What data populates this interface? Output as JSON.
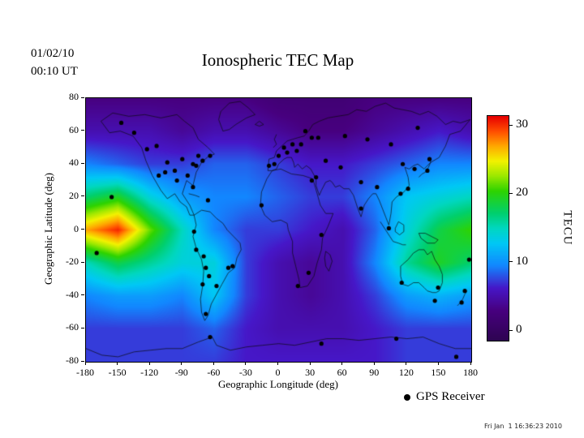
{
  "header": {
    "date": "01/02/10",
    "time": "00:10 UT",
    "title": "Ionospheric TEC Map"
  },
  "axes": {
    "xlabel": "Geographic Longitude (deg)",
    "ylabel": "Geographic Latitude (deg)",
    "x_ticks": [
      -180,
      -150,
      -120,
      -90,
      -60,
      -30,
      0,
      30,
      60,
      90,
      120,
      150,
      180
    ],
    "y_ticks": [
      80,
      60,
      40,
      20,
      0,
      -20,
      -40,
      -60,
      -80
    ]
  },
  "colorbar": {
    "unit": "TECU",
    "ticks": [
      30,
      20,
      10,
      0
    ],
    "min": 0,
    "max": 30
  },
  "legend": {
    "label": "GPS Receiver"
  },
  "footer": {
    "timestamp": "Fri Jan  1 16:36:23 2010"
  },
  "chart_data": {
    "type": "heatmap",
    "title": "Ionospheric TEC Map",
    "xlabel": "Geographic Longitude (deg)",
    "ylabel": "Geographic Latitude (deg)",
    "units": "TECU",
    "zlim": [
      0,
      30
    ],
    "xlim": [
      -180,
      180
    ],
    "ylim": [
      -80,
      80
    ],
    "x": [
      -180,
      -150,
      -120,
      -90,
      -60,
      -30,
      0,
      30,
      60,
      90,
      120,
      150,
      180
    ],
    "y": [
      80,
      60,
      40,
      20,
      0,
      -20,
      -40,
      -60,
      -80
    ],
    "values": [
      [
        4,
        4,
        4,
        4,
        4,
        4,
        3,
        3,
        3,
        4,
        4,
        4,
        4
      ],
      [
        6,
        6,
        6,
        5,
        6,
        6,
        5,
        4,
        4,
        5,
        6,
        7,
        6
      ],
      [
        10,
        9,
        8,
        8,
        9,
        9,
        8,
        7,
        7,
        8,
        9,
        10,
        10
      ],
      [
        17,
        19,
        14,
        11,
        10,
        10,
        9,
        8,
        8,
        10,
        13,
        14,
        15
      ],
      [
        26,
        29,
        21,
        15,
        10,
        8,
        8,
        7,
        6,
        9,
        14,
        18,
        20
      ],
      [
        15,
        18,
        16,
        14,
        14,
        8,
        6,
        5,
        6,
        10,
        16,
        19,
        17
      ],
      [
        10,
        11,
        11,
        10,
        13,
        8,
        6,
        5,
        6,
        8,
        11,
        12,
        11
      ],
      [
        8,
        8,
        8,
        8,
        9,
        7,
        6,
        6,
        6,
        7,
        8,
        8,
        8
      ],
      [
        8,
        8,
        8,
        8,
        8,
        7,
        7,
        7,
        7,
        7,
        8,
        8,
        8
      ]
    ],
    "colormap": [
      {
        "v": 0,
        "c": "#2e0452"
      },
      {
        "v": 4,
        "c": "#47007f"
      },
      {
        "v": 7,
        "c": "#4617c8"
      },
      {
        "v": 10,
        "c": "#1287ff"
      },
      {
        "v": 13,
        "c": "#00c8f5"
      },
      {
        "v": 15,
        "c": "#00d7c0"
      },
      {
        "v": 17,
        "c": "#00cf6e"
      },
      {
        "v": 20,
        "c": "#2ed300"
      },
      {
        "v": 22,
        "c": "#9be800"
      },
      {
        "v": 24,
        "c": "#f2f200"
      },
      {
        "v": 26,
        "c": "#ffa800"
      },
      {
        "v": 28,
        "c": "#ff4d00"
      },
      {
        "v": 30,
        "c": "#e80000"
      }
    ],
    "gps_receivers": [
      [
        -147,
        65
      ],
      [
        -135,
        59
      ],
      [
        -123,
        49
      ],
      [
        -114,
        51
      ],
      [
        -112,
        33
      ],
      [
        -106,
        35
      ],
      [
        -104,
        41
      ],
      [
        -97,
        36
      ],
      [
        -95,
        30
      ],
      [
        -90,
        43
      ],
      [
        -85,
        33
      ],
      [
        -80,
        40
      ],
      [
        -77,
        39
      ],
      [
        -75,
        45
      ],
      [
        -71,
        42
      ],
      [
        -64,
        45
      ],
      [
        -80,
        26
      ],
      [
        -66,
        18
      ],
      [
        -156,
        20
      ],
      [
        -170,
        -14
      ],
      [
        178,
        -18
      ],
      [
        -79,
        -1
      ],
      [
        -77,
        -12
      ],
      [
        -70,
        -16
      ],
      [
        -68,
        -23
      ],
      [
        -65,
        -28
      ],
      [
        -58,
        -34
      ],
      [
        -47,
        -23
      ],
      [
        -43,
        -22
      ],
      [
        -71,
        -33
      ],
      [
        -68,
        -51
      ],
      [
        -9,
        39
      ],
      [
        -4,
        40
      ],
      [
        0,
        45
      ],
      [
        5,
        50
      ],
      [
        8,
        47
      ],
      [
        13,
        52
      ],
      [
        17,
        48
      ],
      [
        21,
        52
      ],
      [
        25,
        60
      ],
      [
        31,
        56
      ],
      [
        37,
        56
      ],
      [
        -16,
        15
      ],
      [
        31,
        30
      ],
      [
        28,
        -26
      ],
      [
        18,
        -34
      ],
      [
        40,
        -3
      ],
      [
        35,
        32
      ],
      [
        44,
        42
      ],
      [
        58,
        38
      ],
      [
        62,
        57
      ],
      [
        77,
        13
      ],
      [
        77,
        29
      ],
      [
        83,
        55
      ],
      [
        92,
        26
      ],
      [
        103,
        1
      ],
      [
        105,
        52
      ],
      [
        114,
        22
      ],
      [
        121,
        25
      ],
      [
        127,
        37
      ],
      [
        130,
        62
      ],
      [
        139,
        36
      ],
      [
        141,
        43
      ],
      [
        116,
        40
      ],
      [
        115,
        -32
      ],
      [
        149,
        -35
      ],
      [
        146,
        -43
      ],
      [
        174,
        -37
      ],
      [
        171,
        -44
      ],
      [
        166,
        -77
      ],
      [
        110,
        -66
      ],
      [
        -64,
        -65
      ],
      [
        40,
        -69
      ]
    ]
  }
}
